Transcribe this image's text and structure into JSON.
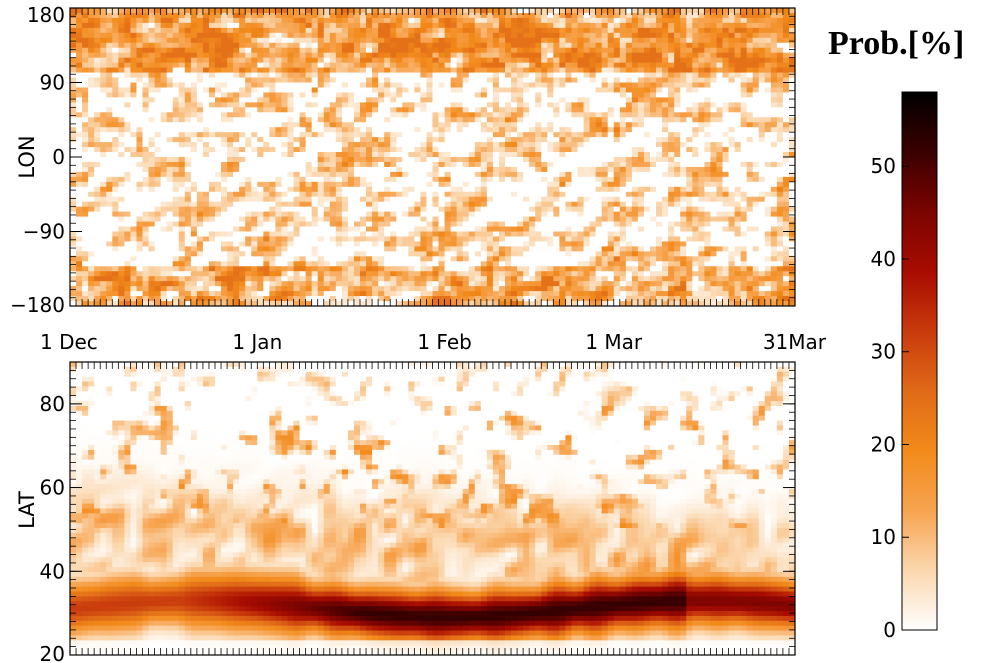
{
  "chart_data": [
    {
      "type": "heatmap",
      "panel": "top",
      "ylabel": "LON",
      "xlabel": "",
      "yticks": [
        180,
        90,
        0,
        -90,
        -180
      ],
      "ytick_labels": [
        "180",
        "90",
        "0",
        "−90",
        "−180"
      ],
      "ylim": [
        -180,
        180
      ],
      "xlim": [
        "1 Dec",
        "31 Mar"
      ],
      "xtick_labels": [],
      "grid": false
    },
    {
      "type": "heatmap",
      "panel": "bottom",
      "ylabel": "LAT",
      "xlabel": "",
      "yticks": [
        80,
        60,
        40,
        20
      ],
      "ytick_labels": [
        "80",
        "60",
        "40",
        "20"
      ],
      "ylim": [
        20,
        90
      ],
      "xlim": [
        "1 Dec",
        "31 Mar"
      ],
      "grid": false
    }
  ],
  "time_axis": {
    "labels": [
      "1 Dec",
      "1 Jan",
      "1 Feb",
      "1 Mar",
      "31Mar"
    ],
    "positions_days": [
      0,
      31,
      62,
      90,
      120
    ]
  },
  "colorbar": {
    "title": "Prob.[%]",
    "min": 0,
    "max": 58,
    "ticks": [
      0,
      10,
      20,
      30,
      40,
      50
    ],
    "tick_labels": [
      "0",
      "10",
      "20",
      "30",
      "40",
      "50"
    ],
    "colors": [
      "#ffffff",
      "#fbd7ae",
      "#f7a450",
      "#f28a1a",
      "#e06a18",
      "#c83a0c",
      "#a80c00",
      "#7a0400",
      "#3a0000",
      "#000000"
    ]
  }
}
